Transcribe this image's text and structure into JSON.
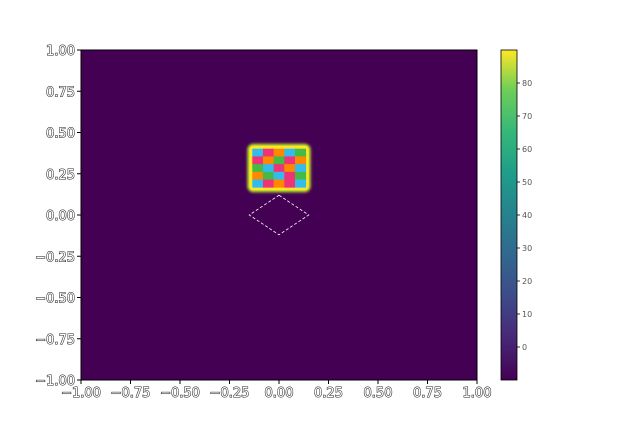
{
  "chart_data": {
    "type": "heatmap",
    "title": "",
    "xlabel": "",
    "ylabel": "",
    "xlim": [
      -1.0,
      1.0
    ],
    "ylim": [
      -1.0,
      1.0
    ],
    "x_ticks": [
      "−1.00",
      "−0.75",
      "−0.50",
      "−0.25",
      "0.00",
      "0.25",
      "0.50",
      "0.75",
      "1.00"
    ],
    "y_ticks": [
      "1.00",
      "0.75",
      "0.50",
      "0.25",
      "0.00",
      "−0.25",
      "−0.50",
      "−0.75",
      "−1.00"
    ],
    "x_tick_values": [
      -1.0,
      -0.75,
      -0.5,
      -0.25,
      0.0,
      0.25,
      0.5,
      0.75,
      1.0
    ],
    "y_tick_values": [
      1.0,
      0.75,
      0.5,
      0.25,
      0.0,
      -0.25,
      -0.5,
      -0.75,
      -1.0
    ],
    "background_value": 0,
    "colormap": "viridis",
    "colorbar": {
      "range": [
        -10,
        90
      ],
      "ticks": [
        0,
        10,
        20,
        30,
        40,
        50,
        60,
        70,
        80
      ],
      "tick_labels": [
        "0",
        "10",
        "20",
        "30",
        "40",
        "50",
        "60",
        "70",
        "80"
      ]
    },
    "patch": {
      "x_range": [
        -0.15,
        0.15
      ],
      "y_range": [
        0.15,
        0.42
      ],
      "rim_value": 70,
      "grid": [
        [
          "#33bbee",
          "#ee3377",
          "#ff8800",
          "#33bbee",
          "#44bb44"
        ],
        [
          "#ee3377",
          "#ff8800",
          "#44bb44",
          "#ee3377",
          "#ff8800"
        ],
        [
          "#44bb44",
          "#33bbee",
          "#ee3377",
          "#ff8800",
          "#33bbee"
        ],
        [
          "#ff8800",
          "#44bb44",
          "#33bbee",
          "#ee3377",
          "#44bb44"
        ],
        [
          "#33bbee",
          "#ee3377",
          "#ff8800",
          "#ee3377",
          "#33bbee"
        ]
      ]
    },
    "diamond": {
      "center": [
        0.0,
        0.0
      ],
      "half_width": 0.15,
      "half_height": 0.12,
      "style": "dashed",
      "color": "#ffffff"
    },
    "grid": false,
    "legend": "none"
  }
}
